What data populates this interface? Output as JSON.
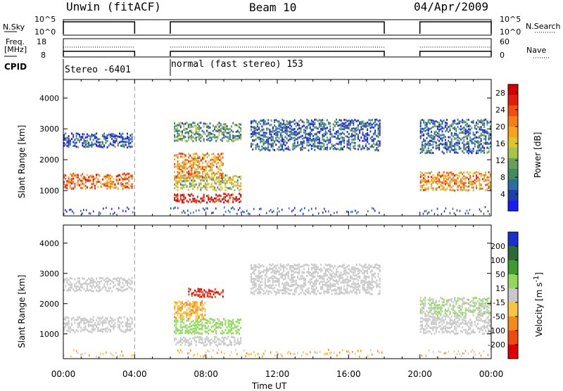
{
  "header": {
    "station": "Unwin (fitACF)",
    "beam": "Beam 10",
    "date": "04/Apr/2009"
  },
  "strip_labels": {
    "nsky": "N.Sky",
    "nsky_top": "10^5",
    "nsky_bot": "10^0",
    "nsearch": "N.Search",
    "freq": "Freq.",
    "freq_unit": "[MHz]",
    "freq_top": "18",
    "freq_bot": "8",
    "nave": "Nave",
    "nave_top": "60",
    "nave_bot": "0",
    "cpid": "CPID",
    "mode1": "Stereo -6401",
    "mode2": "normal (fast stereo) 153"
  },
  "colors": {
    "power_scale": [
      "#1a1aff",
      "#1c3fa8",
      "#2e6e9a",
      "#3f8a5e",
      "#66a05c",
      "#a6c44a",
      "#e0c427",
      "#f6a31d",
      "#f57f15",
      "#f24e0e",
      "#e21d0b",
      "#d40000"
    ],
    "velocity_scale": [
      "#1a2fd0",
      "#2d6a3a",
      "#3e9b30",
      "#8fd85a",
      "#c8c8c8",
      "#f6c542",
      "#f48c1c",
      "#f04a10",
      "#e00000"
    ]
  },
  "chart_data": [
    {
      "type": "heatmap",
      "title": "Power",
      "xlabel": "Time UT",
      "ylabel": "Slant Range [km]",
      "x_ticks": [
        "00:00",
        "04:00",
        "08:00",
        "12:00",
        "16:00",
        "20:00",
        "00:00"
      ],
      "y_ticks": [
        1000,
        2000,
        3000,
        4000
      ],
      "ylim": [
        180,
        4600
      ],
      "xlim_hours": [
        0,
        24
      ],
      "colorbar": {
        "label": "Power [dB]",
        "ticks": [
          4,
          8,
          12,
          16,
          20,
          24,
          28
        ],
        "range": [
          0,
          30
        ]
      },
      "data_gaps_hours": [
        [
          4.0,
          6.0
        ],
        [
          18.0,
          20.0
        ]
      ],
      "echo_bands": [
        {
          "t": [
            0.0,
            3.9
          ],
          "range_km": [
            1050,
            1550
          ],
          "power_db": 22
        },
        {
          "t": [
            0.0,
            3.9
          ],
          "range_km": [
            2400,
            2850
          ],
          "power_db": 5
        },
        {
          "t": [
            6.2,
            10.0
          ],
          "range_km": [
            600,
            900
          ],
          "power_db": 28
        },
        {
          "t": [
            6.2,
            10.0
          ],
          "range_km": [
            1000,
            1500
          ],
          "power_db": 14
        },
        {
          "t": [
            6.2,
            9.0
          ],
          "range_km": [
            1400,
            2200
          ],
          "power_db": 20
        },
        {
          "t": [
            6.2,
            10.0
          ],
          "range_km": [
            2600,
            3200
          ],
          "power_db": 10
        },
        {
          "t": [
            10.5,
            17.8
          ],
          "range_km": [
            2300,
            3300
          ],
          "power_db": 6
        },
        {
          "t": [
            20.0,
            24.0
          ],
          "range_km": [
            1000,
            1600
          ],
          "power_db": 20
        },
        {
          "t": [
            20.0,
            24.0
          ],
          "range_km": [
            2200,
            3300
          ],
          "power_db": 6
        }
      ]
    },
    {
      "type": "heatmap",
      "title": "Velocity",
      "xlabel": "Time UT",
      "ylabel": "Slant Range [km]",
      "x_ticks": [
        "00:00",
        "04:00",
        "08:00",
        "12:00",
        "16:00",
        "20:00",
        "00:00"
      ],
      "y_ticks": [
        1000,
        2000,
        3000,
        4000
      ],
      "ylim": [
        180,
        4600
      ],
      "xlim_hours": [
        0,
        24
      ],
      "colorbar": {
        "label": "Velocity [m s-1]",
        "ticks": [
          200,
          100,
          50,
          15,
          -15,
          -50,
          -100,
          -200
        ],
        "range": [
          -250,
          250
        ]
      },
      "data_gaps_hours": [
        [
          4.0,
          6.0
        ],
        [
          18.0,
          20.0
        ]
      ],
      "echo_bands": [
        {
          "t": [
            0.0,
            3.9
          ],
          "range_km": [
            1050,
            1550
          ],
          "velocity": 0
        },
        {
          "t": [
            0.0,
            3.9
          ],
          "range_km": [
            2400,
            2850
          ],
          "velocity": 0
        },
        {
          "t": [
            6.2,
            10.0
          ],
          "range_km": [
            600,
            900
          ],
          "velocity": 0
        },
        {
          "t": [
            6.2,
            10.0
          ],
          "range_km": [
            1000,
            1500
          ],
          "velocity": 60
        },
        {
          "t": [
            7.0,
            9.0
          ],
          "range_km": [
            2200,
            2500
          ],
          "velocity": -200
        },
        {
          "t": [
            6.2,
            8.0
          ],
          "range_km": [
            1500,
            2100
          ],
          "velocity": -80
        },
        {
          "t": [
            10.5,
            17.8
          ],
          "range_km": [
            2300,
            3300
          ],
          "velocity": 0
        },
        {
          "t": [
            20.0,
            24.0
          ],
          "range_km": [
            1000,
            1600
          ],
          "velocity": 0
        },
        {
          "t": [
            20.0,
            24.0
          ],
          "range_km": [
            1600,
            2200
          ],
          "velocity": 30
        }
      ]
    }
  ]
}
